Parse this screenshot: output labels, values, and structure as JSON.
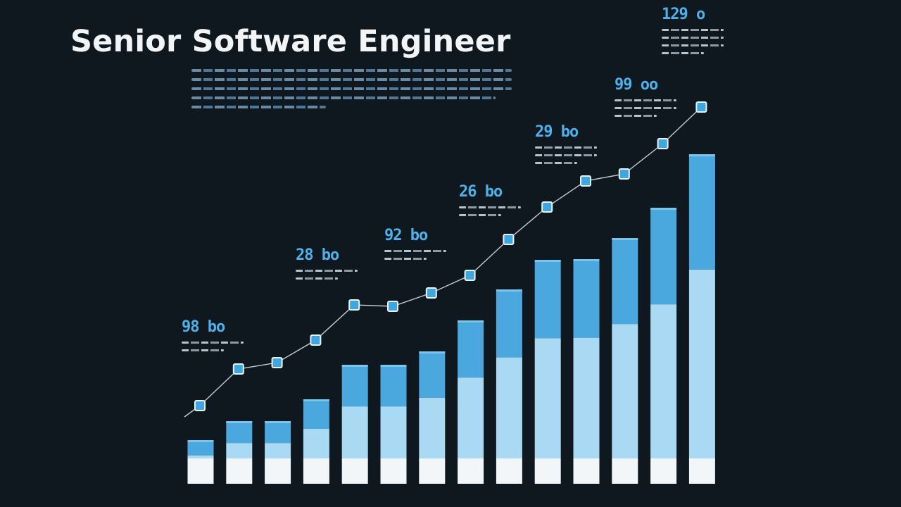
{
  "title": "Senior Software Engineer",
  "chart_data": {
    "type": "bar",
    "title": "Senior Software Engineer",
    "xlabel": "",
    "ylabel": "",
    "grid": false,
    "legend": "none",
    "ylim": [
      0,
      560
    ],
    "bar_values": [
      62,
      89,
      89,
      120,
      169,
      169,
      188,
      232,
      276,
      318,
      319,
      349,
      392,
      468
    ],
    "line_values": [
      111,
      163,
      172,
      204,
      254,
      252,
      271,
      296,
      347,
      393,
      430,
      440,
      483,
      535
    ],
    "callouts": [
      "98 bo",
      "28 bo",
      "92 bo",
      "26 bo",
      "29 bo",
      "99 oo",
      "129 o"
    ],
    "colors": {
      "bar_top": "#4aa8de",
      "bar_mid": "#a9d9f3",
      "bar_base": "#f2f6f8",
      "line": "#c8ccd0",
      "marker": "#3fa6e0",
      "background": "#0f181f"
    }
  }
}
